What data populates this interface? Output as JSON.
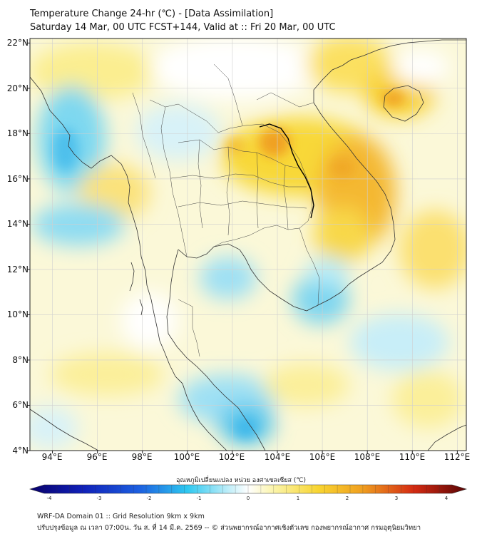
{
  "title": "Temperature Change 24-hr (℃) - [Data Assimilation]",
  "subtitle": "Saturday 14 Mar, 00 UTC FCST+144, Valid at :: Fri 20 Mar, 00 UTC",
  "map": {
    "lat_labels": [
      "22°N",
      "20°N",
      "18°N",
      "16°N",
      "14°N",
      "12°N",
      "10°N",
      "8°N",
      "6°N",
      "4°N"
    ],
    "lon_labels": [
      "94°E",
      "96°E",
      "98°E",
      "100°E",
      "102°E",
      "104°E",
      "106°E",
      "108°E",
      "110°E",
      "112°E"
    ],
    "extent": {
      "lon_min": 93,
      "lon_max": 112.4,
      "lat_min": 4,
      "lat_max": 22.2
    }
  },
  "colorbar": {
    "label": "อุณหภูมิเปลี่ยนแปลง หน่วย องศาเซลเซียส (℃)",
    "min": -4,
    "max": 4,
    "tick_labels": [
      "-4",
      "-3",
      "-2",
      "-1",
      "0",
      "1",
      "2",
      "3",
      "4"
    ],
    "colors": {
      "dark_blue": "#08006b",
      "blue": "#1c5fe0",
      "cyan": "#2ec8f0",
      "light_cyan": "#b8ecf8",
      "white": "#ffffff",
      "light_yellow": "#fbf4a8",
      "yellow": "#f8d531",
      "orange": "#f0a020",
      "red": "#d42a12",
      "dark_red": "#5a0404"
    }
  },
  "footer": {
    "line1": "WRF-DA Domain 01 :: Grid Resolution 9km x 9km",
    "line2": "ปรับปรุงข้อมูล ณ เวลา 07:00น. วัน ส. ที่ 14 มี.ค. 2569 -- © ส่วนพยากรณ์อากาศเชิงตัวเลข กองพยากรณ์อากาศ กรมอุตุนิยมวิทยา"
  }
}
